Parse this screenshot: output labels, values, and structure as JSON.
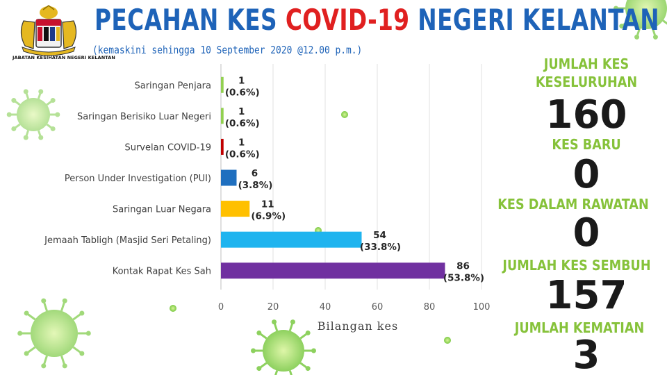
{
  "header": {
    "agency": "JABATAN KESIHATAN NEGERI KELANTAN",
    "title_part1": "PECAHAN KES ",
    "title_part2": "COVID-19",
    "title_part3": " NEGERI KELANTAN",
    "subtitle": "(kemaskini sehingga 10 September 2020 @12.00 p.m.)"
  },
  "colors": {
    "title_blue": "#1e63b8",
    "title_red": "#e02020",
    "stat_label_green": "#86c23a",
    "virus_green": "#7ac943"
  },
  "icons": {
    "logo": "coat-of-arms-icon",
    "decor": "virus-icon"
  },
  "stats": [
    {
      "label": "JUMLAH KES\nKESELURUHAN",
      "value": "160"
    },
    {
      "label": "KES BARU",
      "value": "0"
    },
    {
      "label": "KES DALAM RAWATAN",
      "value": "0"
    },
    {
      "label": "JUMLAH KES SEMBUH",
      "value": "157"
    },
    {
      "label": "JUMLAH KEMATIAN",
      "value": "3"
    }
  ],
  "chart_data": {
    "type": "bar",
    "orientation": "horizontal",
    "xlabel": "Bilangan kes",
    "xlim": [
      0,
      100
    ],
    "xticks": [
      "0",
      "20",
      "40",
      "60",
      "80",
      "100"
    ],
    "grid": true,
    "categories": [
      "Saringan Penjara",
      "Saringan Berisiko Luar Negeri",
      "Survelan COVID-19",
      "Person Under Investigation (PUI)",
      "Saringan Luar Negara",
      "Jemaah Tabligh (Masjid Seri Petaling)",
      "Kontak Rapat Kes Sah"
    ],
    "values": [
      1,
      1,
      1,
      6,
      11,
      54,
      86
    ],
    "percent_labels": [
      "(0.6%)",
      "(0.6%)",
      "(0.6%)",
      "(3.8%)",
      "(6.9%)",
      "(33.8%)",
      "(53.8%)"
    ],
    "colors": [
      "#92d050",
      "#92d050",
      "#c00000",
      "#1f6fbf",
      "#ffc000",
      "#1fb4ef",
      "#7030a0"
    ]
  }
}
